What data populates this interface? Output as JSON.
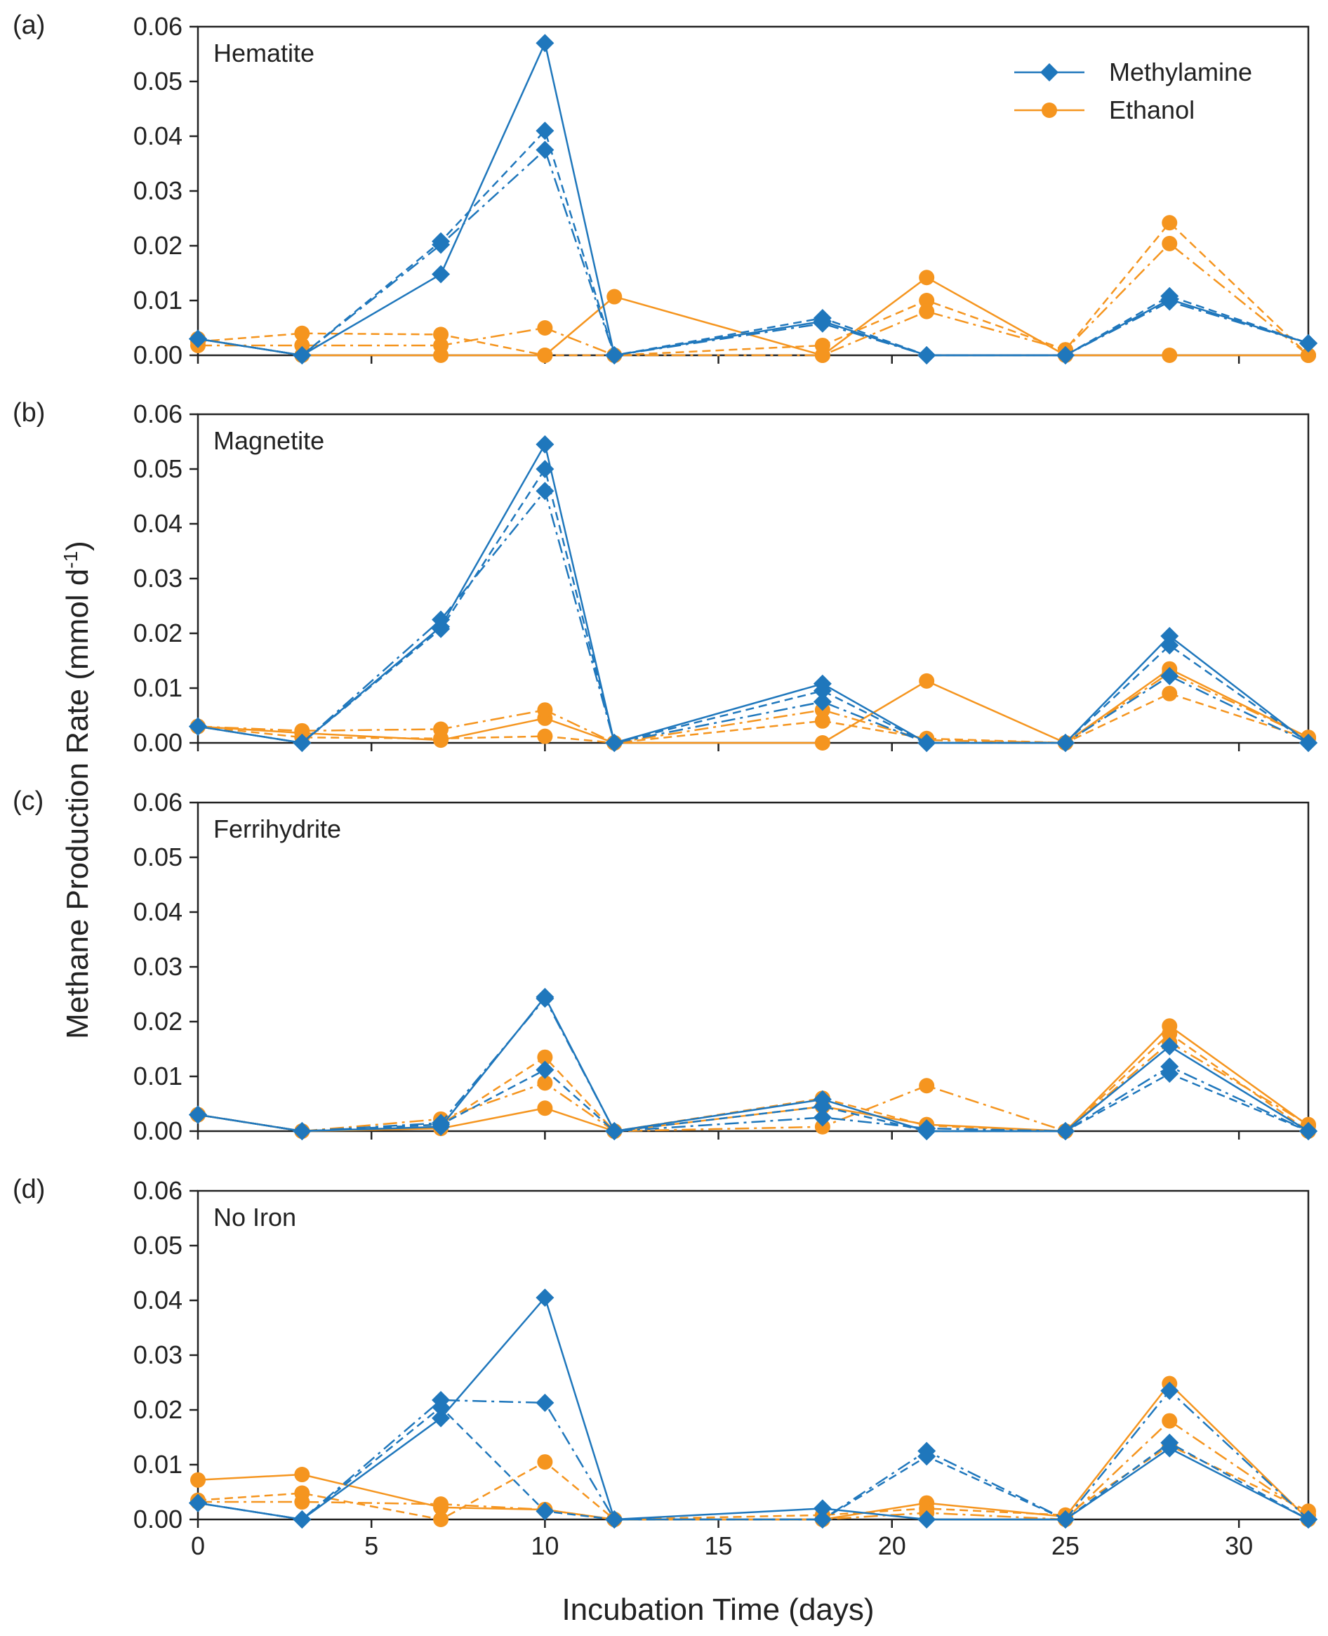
{
  "chart_data": {
    "type": "line",
    "ylabel": "Methane Production Rate (mmol d",
    "ylabel_sup": "-1",
    "ylabel_close": ")",
    "xlabel": "Incubation Time (days)",
    "xlim": [
      0,
      32
    ],
    "ylim": [
      0,
      0.06
    ],
    "x_ticks": [
      0,
      5,
      10,
      15,
      20,
      25,
      30
    ],
    "x_tick_labels": [
      "0",
      "5",
      "10",
      "15",
      "20",
      "25",
      "30"
    ],
    "y_ticks": [
      0,
      0.01,
      0.02,
      0.03,
      0.04,
      0.05,
      0.06
    ],
    "y_tick_labels": [
      "0.00",
      "0.01",
      "0.02",
      "0.03",
      "0.04",
      "0.05",
      "0.06"
    ],
    "colors": {
      "methylamine": "#1f77bc",
      "ethanol": "#f5951f"
    },
    "legend": [
      {
        "name": "Methylamine",
        "marker": "diamond",
        "color": "#1f77bc"
      },
      {
        "name": "Ethanol",
        "marker": "circle",
        "color": "#f5951f"
      }
    ],
    "x": [
      0,
      3,
      7,
      10,
      12,
      18,
      21,
      25,
      28,
      32
    ],
    "panels": [
      {
        "letter": "(a)",
        "title": "Hematite",
        "series": [
          {
            "substrate": "Methylamine",
            "replicate": 1,
            "style": "solid",
            "values": [
              0.003,
              0.0,
              0.0148,
              0.057,
              0.0,
              0.0062,
              0.0,
              0.0,
              0.0102,
              0.0022
            ]
          },
          {
            "substrate": "Methylamine",
            "replicate": 2,
            "style": "dash",
            "values": [
              0.003,
              0.0,
              0.0208,
              0.041,
              0.0,
              0.0068,
              0.0,
              0.0,
              0.0108,
              0.0022
            ]
          },
          {
            "substrate": "Methylamine",
            "replicate": 3,
            "style": "dashdot",
            "values": [
              0.003,
              0.0,
              0.0202,
              0.0375,
              0.0,
              0.0058,
              0.0,
              0.0,
              0.0098,
              0.0022
            ]
          },
          {
            "substrate": "Ethanol",
            "replicate": 1,
            "style": "solid",
            "values": [
              0.003,
              0.0,
              0.0,
              0.0,
              0.0107,
              0.0,
              0.0142,
              0.0,
              0.0,
              0.0
            ]
          },
          {
            "substrate": "Ethanol",
            "replicate": 2,
            "style": "dash",
            "values": [
              0.0025,
              0.004,
              0.0038,
              0.0,
              0.0,
              0.0018,
              0.01,
              0.001,
              0.0242,
              0.0
            ]
          },
          {
            "substrate": "Ethanol",
            "replicate": 3,
            "style": "dashdot",
            "values": [
              0.0018,
              0.0018,
              0.0018,
              0.005,
              0.0,
              0.0,
              0.008,
              0.001,
              0.0204,
              0.0
            ]
          }
        ]
      },
      {
        "letter": "(b)",
        "title": "Magnetite",
        "series": [
          {
            "substrate": "Methylamine",
            "replicate": 1,
            "style": "solid",
            "values": [
              0.003,
              0.0,
              0.0212,
              0.0545,
              0.0,
              0.0108,
              0.0,
              0.0,
              0.0195,
              0.0
            ]
          },
          {
            "substrate": "Methylamine",
            "replicate": 2,
            "style": "dash",
            "values": [
              0.003,
              0.0,
              0.0208,
              0.05,
              0.0,
              0.0095,
              0.0,
              0.0,
              0.0178,
              0.0
            ]
          },
          {
            "substrate": "Methylamine",
            "replicate": 3,
            "style": "dashdot",
            "values": [
              0.003,
              0.0,
              0.0225,
              0.046,
              0.0,
              0.0075,
              0.0,
              0.0,
              0.0122,
              0.0
            ]
          },
          {
            "substrate": "Ethanol",
            "replicate": 1,
            "style": "solid",
            "values": [
              0.003,
              0.0018,
              0.0005,
              0.0045,
              0.0,
              0.0,
              0.0113,
              0.0,
              0.0135,
              0.001
            ]
          },
          {
            "substrate": "Ethanol",
            "replicate": 2,
            "style": "dash",
            "values": [
              0.003,
              0.001,
              0.0008,
              0.0012,
              0.0,
              0.004,
              0.0008,
              0.0,
              0.009,
              0.0008
            ]
          },
          {
            "substrate": "Ethanol",
            "replicate": 3,
            "style": "dashdot",
            "values": [
              0.003,
              0.0022,
              0.0025,
              0.006,
              0.0,
              0.006,
              0.0005,
              0.0,
              0.0128,
              0.001
            ]
          }
        ]
      },
      {
        "letter": "(c)",
        "title": "Ferrihydrite",
        "series": [
          {
            "substrate": "Methylamine",
            "replicate": 1,
            "style": "solid",
            "values": [
              0.003,
              0.0,
              0.0008,
              0.0245,
              0.0,
              0.0058,
              0.0,
              0.0,
              0.0155,
              0.0
            ]
          },
          {
            "substrate": "Methylamine",
            "replicate": 2,
            "style": "dash",
            "values": [
              0.003,
              0.0,
              0.0012,
              0.0112,
              0.0,
              0.0045,
              0.0,
              0.0,
              0.0105,
              0.0
            ]
          },
          {
            "substrate": "Methylamine",
            "replicate": 3,
            "style": "dashdot",
            "values": [
              0.003,
              0.0,
              0.0015,
              0.0242,
              0.0,
              0.0025,
              0.0005,
              0.0,
              0.0118,
              0.0
            ]
          },
          {
            "substrate": "Ethanol",
            "replicate": 1,
            "style": "solid",
            "values": [
              0.003,
              0.0,
              0.0005,
              0.0042,
              0.0,
              0.0045,
              0.0012,
              0.0,
              0.0192,
              0.001
            ]
          },
          {
            "substrate": "Ethanol",
            "replicate": 2,
            "style": "dash",
            "values": [
              0.003,
              0.0,
              0.0012,
              0.0135,
              0.0,
              0.006,
              0.001,
              0.0,
              0.0178,
              0.0
            ]
          },
          {
            "substrate": "Ethanol",
            "replicate": 3,
            "style": "dashdot",
            "values": [
              0.003,
              0.0,
              0.0022,
              0.0088,
              0.0,
              0.0008,
              0.0083,
              0.0,
              0.0162,
              0.0012
            ]
          }
        ]
      },
      {
        "letter": "(d)",
        "title": "No Iron",
        "series": [
          {
            "substrate": "Methylamine",
            "replicate": 1,
            "style": "solid",
            "values": [
              0.003,
              0.0,
              0.0185,
              0.0405,
              0.0,
              0.002,
              0.0,
              0.0,
              0.013,
              0.0
            ]
          },
          {
            "substrate": "Methylamine",
            "replicate": 2,
            "style": "dash",
            "values": [
              0.003,
              0.0,
              0.0205,
              0.0015,
              0.0,
              0.0,
              0.0115,
              0.0,
              0.014,
              0.0
            ]
          },
          {
            "substrate": "Methylamine",
            "replicate": 3,
            "style": "dashdot",
            "values": [
              0.003,
              0.0,
              0.0218,
              0.0213,
              0.0,
              0.0,
              0.0125,
              0.0,
              0.0235,
              0.0
            ]
          },
          {
            "substrate": "Ethanol",
            "replicate": 1,
            "style": "solid",
            "values": [
              0.0072,
              0.0082,
              0.0022,
              0.0018,
              0.0,
              0.0,
              0.003,
              0.0005,
              0.0248,
              0.0
            ]
          },
          {
            "substrate": "Ethanol",
            "replicate": 2,
            "style": "dash",
            "values": [
              0.0035,
              0.0048,
              0.0,
              0.0105,
              0.0,
              0.0008,
              0.002,
              0.0008,
              0.0135,
              0.0015
            ]
          },
          {
            "substrate": "Ethanol",
            "replicate": 3,
            "style": "dashdot",
            "values": [
              0.0032,
              0.0032,
              0.0028,
              0.0018,
              0.0,
              0.0,
              0.0012,
              0.0,
              0.018,
              0.0008
            ]
          }
        ]
      }
    ]
  }
}
